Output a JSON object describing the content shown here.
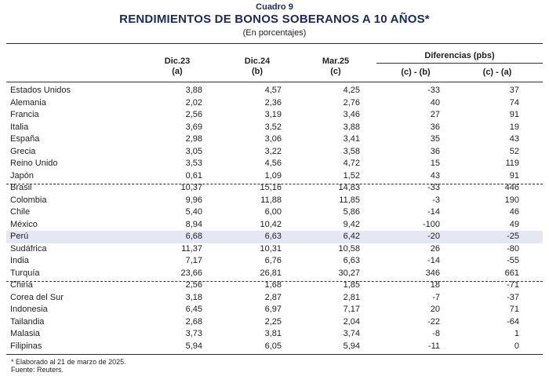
{
  "header": {
    "kicker": "Cuadro 9",
    "title": "RENDIMIENTOS DE BONOS SOBERANOS A 10 AÑOS*",
    "subtitle": "(En porcentajes)"
  },
  "columns": {
    "dic23": {
      "label": "Dic.23",
      "sub": "(a)"
    },
    "dic24": {
      "label": "Dic.24",
      "sub": "(b)"
    },
    "mar25": {
      "label": "Mar.25",
      "sub": "(c)"
    },
    "diff_group": "Diferencias (pbs)",
    "diff_cb": "(c) - (b)",
    "diff_ca": "(c) - (a)"
  },
  "rows": [
    {
      "country": "Estados Unidos",
      "a": "3,88",
      "b": "4,57",
      "c": "4,25",
      "cb": "-33",
      "ca": "37"
    },
    {
      "country": "Alemania",
      "a": "2,02",
      "b": "2,36",
      "c": "2,76",
      "cb": "40",
      "ca": "74"
    },
    {
      "country": "Francia",
      "a": "2,56",
      "b": "3,19",
      "c": "3,46",
      "cb": "27",
      "ca": "91"
    },
    {
      "country": "Italia",
      "a": "3,69",
      "b": "3,52",
      "c": "3,88",
      "cb": "36",
      "ca": "19"
    },
    {
      "country": "España",
      "a": "2,98",
      "b": "3,06",
      "c": "3,41",
      "cb": "35",
      "ca": "43"
    },
    {
      "country": "Grecia",
      "a": "3,05",
      "b": "3,22",
      "c": "3,58",
      "cb": "36",
      "ca": "52"
    },
    {
      "country": "Reino Unido",
      "a": "3,53",
      "b": "4,56",
      "c": "4,72",
      "cb": "15",
      "ca": "119"
    },
    {
      "country": "Japón",
      "a": "0,61",
      "b": "1,09",
      "c": "1,52",
      "cb": "43",
      "ca": "91"
    },
    {
      "country": "Brasil",
      "a": "10,37",
      "b": "15,16",
      "c": "14,83",
      "cb": "-33",
      "ca": "446"
    },
    {
      "country": "Colombia",
      "a": "9,96",
      "b": "11,88",
      "c": "11,85",
      "cb": "-3",
      "ca": "190"
    },
    {
      "country": "Chile",
      "a": "5,40",
      "b": "6,00",
      "c": "5,86",
      "cb": "-14",
      "ca": "46"
    },
    {
      "country": "México",
      "a": "8,94",
      "b": "10,42",
      "c": "9,42",
      "cb": "-100",
      "ca": "49"
    },
    {
      "country": "Perú",
      "a": "6,68",
      "b": "6,63",
      "c": "6,42",
      "cb": "-20",
      "ca": "-25",
      "highlight": true
    },
    {
      "country": "Sudáfrica",
      "a": "11,37",
      "b": "10,31",
      "c": "10,58",
      "cb": "26",
      "ca": "-80"
    },
    {
      "country": "India",
      "a": "7,17",
      "b": "6,76",
      "c": "6,63",
      "cb": "-14",
      "ca": "-55"
    },
    {
      "country": "Turquía",
      "a": "23,66",
      "b": "26,81",
      "c": "30,27",
      "cb": "346",
      "ca": "661"
    },
    {
      "country": "China",
      "a": "2,56",
      "b": "1,68",
      "c": "1,85",
      "cb": "18",
      "ca": "-71"
    },
    {
      "country": "Corea del Sur",
      "a": "3,18",
      "b": "2,87",
      "c": "2,81",
      "cb": "-7",
      "ca": "-37"
    },
    {
      "country": "Indonesia",
      "a": "6,45",
      "b": "6,97",
      "c": "7,17",
      "cb": "20",
      "ca": "71"
    },
    {
      "country": "Tailandia",
      "a": "2,68",
      "b": "2,25",
      "c": "2,04",
      "cb": "-22",
      "ca": "-64"
    },
    {
      "country": "Malasia",
      "a": "3,73",
      "b": "3,81",
      "c": "3,74",
      "cb": "-8",
      "ca": "1"
    },
    {
      "country": "Filipinas",
      "a": "5,94",
      "b": "6,05",
      "c": "5,94",
      "cb": "-11",
      "ca": "0"
    }
  ],
  "footnotes": {
    "note": "* Elaborado al 21 de marzo de 2025.",
    "source": "Fuente: Reuters."
  }
}
